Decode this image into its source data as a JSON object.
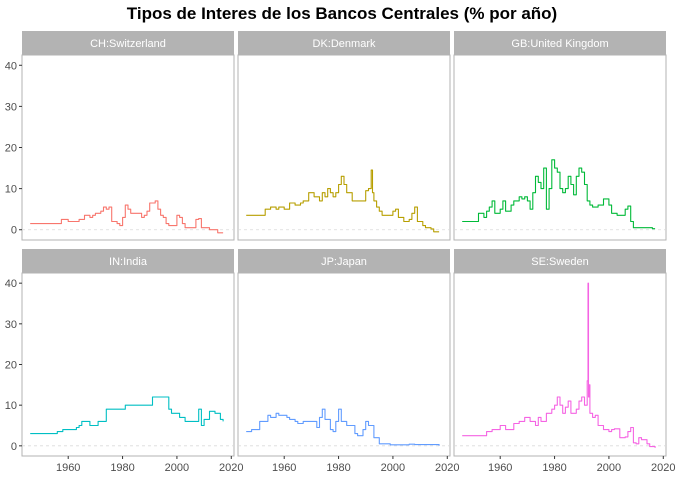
{
  "chart_data": {
    "type": "line",
    "title": "Tipos de Interes de los Bancos Centrales (% por año)",
    "xlabel": "",
    "ylabel": "",
    "xlim": [
      1943,
      2021
    ],
    "ylim": [
      -2.5,
      42.5
    ],
    "x_ticks": [
      1960,
      1980,
      2000,
      2020
    ],
    "y_ticks": [
      0,
      10,
      20,
      30,
      40
    ],
    "grid": false,
    "zero_line": "dashed",
    "facets": [
      {
        "label": "CH:Switzerland",
        "color": "#F8766D",
        "x": [
          1946,
          1957,
          1957.5,
          1960,
          1964,
          1966,
          1968,
          1969,
          1970,
          1972,
          1973,
          1974,
          1975,
          1976,
          1978,
          1979,
          1980,
          1981,
          1982,
          1983,
          1985,
          1987,
          1988,
          1989,
          1990,
          1991,
          1992,
          1993,
          1994,
          1995,
          1996,
          1997,
          1999,
          2000,
          2001,
          2002,
          2003,
          2005,
          2007,
          2008,
          2009,
          2012,
          2015,
          2017
        ],
        "y": [
          1.5,
          1.5,
          2.5,
          2,
          2.5,
          3.5,
          3,
          3.5,
          4,
          4.5,
          5.5,
          5,
          5.5,
          2,
          1.5,
          1,
          3,
          6,
          5,
          4,
          4,
          3,
          3.5,
          4.5,
          6.5,
          6.5,
          7,
          5,
          3.5,
          3,
          1.5,
          1,
          1,
          3.5,
          3,
          1.5,
          0.5,
          0.5,
          2.5,
          2.7,
          0.5,
          0,
          -0.75,
          -0.75
        ]
      },
      {
        "label": "DK:Denmark",
        "color": "#B79F00",
        "x": [
          1946,
          1950,
          1953,
          1955,
          1957,
          1958,
          1960,
          1962,
          1964,
          1966,
          1967,
          1969,
          1971,
          1973,
          1974,
          1975,
          1976,
          1977,
          1978,
          1979,
          1980,
          1981,
          1982,
          1983,
          1985,
          1986,
          1988,
          1990,
          1991,
          1992,
          1992.5,
          1993,
          1994,
          1995,
          1996,
          1998,
          2000,
          2001,
          2002,
          2004,
          2006,
          2007,
          2008,
          2009,
          2011,
          2012,
          2014,
          2015,
          2017
        ],
        "y": [
          3.5,
          3.5,
          5,
          5.5,
          5,
          5.5,
          5,
          6.5,
          6,
          6.5,
          7,
          9,
          8,
          7,
          9,
          8,
          10,
          9,
          8,
          9,
          11,
          13,
          11,
          9,
          7,
          7,
          7,
          9.5,
          10,
          14.5,
          9,
          7,
          5.5,
          4.5,
          3.5,
          3.5,
          4.5,
          5,
          3,
          2,
          2.5,
          4,
          5.5,
          2,
          1,
          0.5,
          0.2,
          -0.5,
          -0.5
        ]
      },
      {
        "label": "GB:United Kingdom",
        "color": "#00BA38",
        "x": [
          1946,
          1951,
          1952,
          1954,
          1955,
          1956,
          1957,
          1958,
          1960,
          1961,
          1962,
          1964,
          1965,
          1967,
          1968,
          1969,
          1970,
          1971,
          1972,
          1973,
          1974,
          1975,
          1976,
          1977,
          1978,
          1979,
          1980,
          1981,
          1982,
          1983,
          1984,
          1985,
          1986,
          1987,
          1988,
          1989,
          1990,
          1991,
          1992,
          1993,
          1994,
          1996,
          1998,
          2000,
          2001,
          2003,
          2006,
          2007,
          2008,
          2009,
          2016,
          2017
        ],
        "y": [
          2,
          2,
          4,
          3,
          4.5,
          5.5,
          7,
          4,
          5,
          7,
          4.5,
          6,
          7,
          8,
          7.5,
          8,
          7,
          5,
          9,
          13,
          11.5,
          10,
          15,
          5,
          10,
          17,
          15,
          14,
          10,
          9,
          10,
          13,
          11,
          8.5,
          13,
          15,
          14,
          11,
          7,
          6,
          5.5,
          6,
          7.5,
          6,
          4,
          3.5,
          5,
          5.75,
          2,
          0.5,
          0.25,
          0.25
        ]
      },
      {
        "label": "IN:India",
        "color": "#00BFC4",
        "x": [
          1946,
          1951,
          1956,
          1958,
          1963,
          1964,
          1965,
          1968,
          1971,
          1974,
          1981,
          1991,
          1992,
          1997,
          1998,
          2000,
          2001,
          2003,
          2008,
          2009,
          2010,
          2012,
          2014,
          2016,
          2017
        ],
        "y": [
          3,
          3,
          3.5,
          4,
          4.5,
          5,
          6,
          5,
          6,
          9,
          10,
          12,
          12,
          9,
          8,
          8,
          7,
          6,
          9,
          5,
          6.5,
          8.5,
          8,
          6.5,
          6
        ]
      },
      {
        "label": "JP:Japan",
        "color": "#619CFF",
        "x": [
          1946,
          1948,
          1951,
          1954,
          1955,
          1957,
          1958,
          1961,
          1962,
          1964,
          1965,
          1967,
          1968,
          1969,
          1970,
          1972,
          1973,
          1974,
          1975,
          1977,
          1978,
          1979,
          1980,
          1981,
          1983,
          1986,
          1987,
          1989,
          1990,
          1991,
          1993,
          1995,
          1999,
          2006,
          2008,
          2017
        ],
        "y": [
          3.5,
          4,
          6,
          7.5,
          7,
          8,
          7.5,
          7,
          6.5,
          6,
          5.5,
          6,
          6,
          6,
          6,
          4.5,
          7,
          9,
          6.5,
          4,
          3.5,
          6,
          9,
          6,
          5,
          3,
          2.5,
          4,
          6,
          5,
          2,
          0.5,
          0.25,
          0.4,
          0.3,
          0
        ]
      },
      {
        "label": "SE:Sweden",
        "color": "#F564E3",
        "x": [
          1946,
          1950,
          1955,
          1957,
          1960,
          1962,
          1965,
          1967,
          1969,
          1971,
          1973,
          1974,
          1975,
          1977,
          1979,
          1980,
          1981,
          1982,
          1983,
          1984,
          1985,
          1986,
          1987,
          1988,
          1989,
          1990,
          1991,
          1992,
          1992.3,
          1992.5,
          1992.7,
          1993,
          1994,
          1995,
          1996,
          1998,
          2000,
          2001,
          2002,
          2004,
          2006,
          2007,
          2008,
          2009,
          2010,
          2011,
          2012,
          2014,
          2015,
          2017
        ],
        "y": [
          2.5,
          2.5,
          3.5,
          4,
          5,
          4,
          5.5,
          6,
          7,
          6,
          5,
          7,
          6,
          8,
          9,
          10,
          12,
          10,
          8,
          9.5,
          11,
          8,
          8,
          9,
          11,
          12,
          10,
          16,
          40,
          12,
          15,
          8,
          7,
          7.5,
          5,
          4,
          3.5,
          4,
          4.2,
          2,
          2.2,
          3.5,
          4.5,
          0.75,
          0.5,
          2,
          1.5,
          0.5,
          -0.2,
          -0.5
        ]
      }
    ]
  }
}
